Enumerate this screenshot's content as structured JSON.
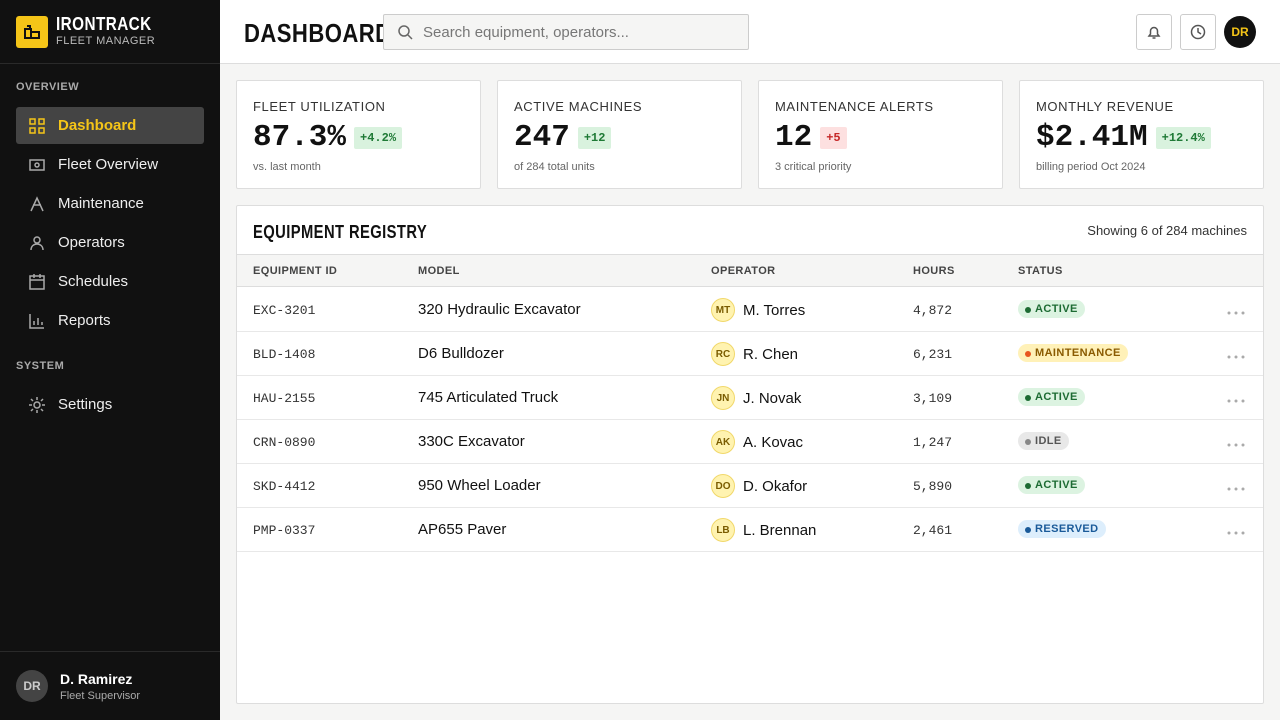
{
  "sidebar": {
    "brand": "IRONTRACK",
    "brand_sub": "FLEET MANAGER",
    "sections": [
      {
        "title": "OVERVIEW",
        "items": [
          "Dashboard",
          "Fleet Overview",
          "Maintenance",
          "Operators",
          "Schedules",
          "Reports"
        ]
      },
      {
        "title": "SYSTEM",
        "items": [
          "Settings"
        ]
      }
    ],
    "user": {
      "initials": "DR",
      "name": "D. Ramirez",
      "role": "Fleet Supervisor"
    }
  },
  "header": {
    "title": "DASHBOARD",
    "search_placeholder": "Search equipment, operators...",
    "avatar": "DR"
  },
  "kpis": [
    {
      "label": "FLEET UTILIZATION",
      "value": "87.3%",
      "delta": "+4.2%",
      "note": "vs. last month"
    },
    {
      "label": "ACTIVE MACHINES",
      "value": "247",
      "delta": "+12",
      "note": "of 284 total units"
    },
    {
      "label": "MAINTENANCE ALERTS",
      "value": "12",
      "delta": "+5",
      "note": "3 critical priority"
    },
    {
      "label": "MONTHLY REVENUE",
      "value": "$2.41M",
      "delta": "+12.4%",
      "note": "billing period Oct 2024"
    }
  ],
  "registry": {
    "title": "EQUIPMENT REGISTRY",
    "count_text": "Showing 6 of 284 machines",
    "columns": [
      "EQUIPMENT ID",
      "MODEL",
      "OPERATOR",
      "HOURS",
      "STATUS"
    ],
    "rows": [
      {
        "id": "EXC-3201",
        "model": "320 Hydraulic Excavator",
        "initials": "MT",
        "operator": "M. Torres",
        "hours": "4,872",
        "status": "ACTIVE"
      },
      {
        "id": "BLD-1408",
        "model": "D6 Bulldozer",
        "initials": "RC",
        "operator": "R. Chen",
        "hours": "6,231",
        "status": "MAINTENANCE"
      },
      {
        "id": "HAU-2155",
        "model": "745 Articulated Truck",
        "initials": "JN",
        "operator": "J. Novak",
        "hours": "3,109",
        "status": "ACTIVE"
      },
      {
        "id": "CRN-0890",
        "model": "330C Excavator",
        "initials": "AK",
        "operator": "A. Kovac",
        "hours": "1,247",
        "status": "IDLE"
      },
      {
        "id": "SKD-4412",
        "model": "950 Wheel Loader",
        "initials": "DO",
        "operator": "D. Okafor",
        "hours": "5,890",
        "status": "ACTIVE"
      },
      {
        "id": "PMP-0337",
        "model": "AP655 Paver",
        "initials": "LB",
        "operator": "L. Brennan",
        "hours": "2,461",
        "status": "RESERVED"
      }
    ]
  }
}
